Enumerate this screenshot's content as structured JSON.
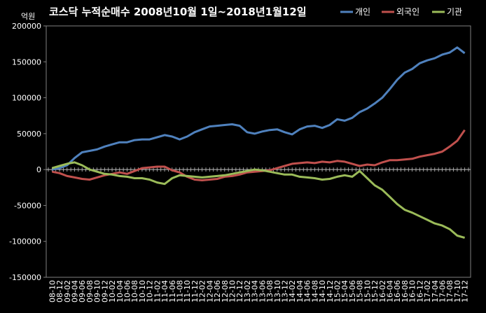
{
  "chart_data": {
    "type": "line",
    "title": "코스닥 누적순매수 2008년10월 1일~2018년1월12일",
    "ylabel": "억원",
    "xlabel": "",
    "ylim": [
      -150000,
      200000
    ],
    "yticks": [
      "200000",
      "150000",
      "100000",
      "50000",
      "0",
      "-50000",
      "-100000",
      "-150000"
    ],
    "categories": [
      "08-10",
      "08-12",
      "09-02",
      "09-04",
      "09-06",
      "09-08",
      "09-10",
      "09-12",
      "10-02",
      "10-04",
      "10-06",
      "10-08",
      "10-10",
      "10-12",
      "11-02",
      "11-04",
      "11-06",
      "11-08",
      "11-10",
      "11-12",
      "12-02",
      "12-04",
      "12-06",
      "12-08",
      "12-10",
      "12-12",
      "13-02",
      "13-04",
      "13-06",
      "13-08",
      "13-10",
      "13-12",
      "14-02",
      "14-04",
      "14-06",
      "14-08",
      "14-10",
      "14-12",
      "15-02",
      "15-04",
      "15-06",
      "15-08",
      "15-10",
      "15-12",
      "16-02",
      "16-04",
      "16-06",
      "16-08",
      "16-10",
      "16-12",
      "17-02",
      "17-04",
      "17-06",
      "17-08",
      "17-10",
      "17-12"
    ],
    "series": [
      {
        "name": "개인",
        "color": "#4f81bd",
        "values": [
          0,
          2000,
          6000,
          16000,
          24000,
          26000,
          28000,
          32000,
          35000,
          38000,
          38000,
          41000,
          42000,
          42000,
          45000,
          48000,
          46000,
          42000,
          46000,
          52000,
          56000,
          60000,
          61000,
          62000,
          63000,
          61000,
          52000,
          50000,
          53000,
          55000,
          56000,
          52000,
          49000,
          56000,
          60000,
          61000,
          58000,
          62000,
          70000,
          68000,
          72000,
          80000,
          85000,
          92000,
          100000,
          112000,
          125000,
          135000,
          140000,
          148000,
          152000,
          155000,
          160000,
          163000,
          170000,
          162000
        ]
      },
      {
        "name": "외국인",
        "color": "#c0504d",
        "values": [
          -3000,
          -5000,
          -9000,
          -11000,
          -13000,
          -14000,
          -11000,
          -8000,
          -6000,
          -4000,
          -6000,
          -2000,
          2000,
          3000,
          4000,
          4000,
          -1000,
          -4000,
          -10000,
          -14000,
          -15000,
          -14000,
          -13000,
          -10000,
          -9000,
          -7000,
          -4000,
          -3000,
          -2000,
          -1000,
          2000,
          5000,
          8000,
          9000,
          10000,
          9000,
          11000,
          10000,
          12000,
          11000,
          8000,
          5000,
          7000,
          6000,
          10000,
          13000,
          13000,
          14000,
          15000,
          18000,
          20000,
          22000,
          25000,
          32000,
          40000,
          55000
        ]
      },
      {
        "name": "기관",
        "color": "#9bbb59",
        "values": [
          2000,
          5000,
          8000,
          10000,
          6000,
          0,
          -3000,
          -6000,
          -7000,
          -9000,
          -10000,
          -12000,
          -12000,
          -14000,
          -18000,
          -20000,
          -12000,
          -8000,
          -9000,
          -10000,
          -11000,
          -10000,
          -9000,
          -8000,
          -6000,
          -4000,
          -2000,
          0,
          -1000,
          -3000,
          -5000,
          -7000,
          -7000,
          -10000,
          -11000,
          -12000,
          -14000,
          -13000,
          -10000,
          -8000,
          -10000,
          -2000,
          -12000,
          -22000,
          -28000,
          -38000,
          -48000,
          -56000,
          -60000,
          -65000,
          -70000,
          -75000,
          -78000,
          -83000,
          -92000,
          -95000
        ]
      }
    ]
  }
}
